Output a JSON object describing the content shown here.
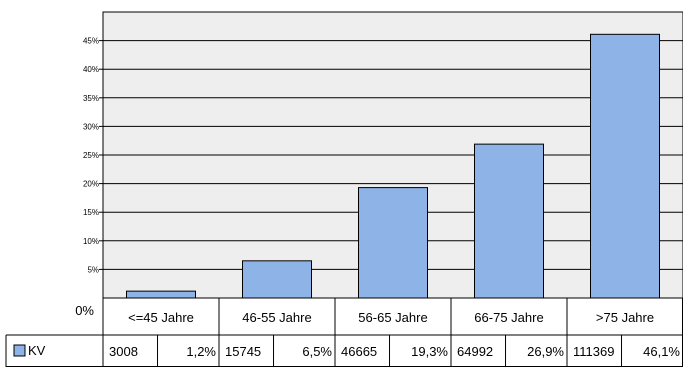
{
  "chart_data": {
    "type": "bar",
    "categories": [
      "<=45 Jahre",
      "46-55 Jahre",
      "56-65 Jahre",
      "66-75 Jahre",
      ">75 Jahre"
    ],
    "series": [
      {
        "name": "KV",
        "values": [
          1.2,
          6.5,
          19.3,
          26.9,
          46.1
        ],
        "counts": [
          "3008",
          "15745",
          "46665",
          "64992",
          "111369"
        ],
        "percent_labels": [
          "1,2%",
          "6,5%",
          "19,3%",
          "26,9%",
          "46,1%"
        ],
        "color": "#8EB3E6"
      }
    ],
    "y_ticks": [
      "0%",
      "5%",
      "10%",
      "15%",
      "20%",
      "25%",
      "30%",
      "35%",
      "40%",
      "45%"
    ],
    "ylim": [
      0,
      50
    ],
    "grid": true,
    "legend": "bottom-left data table",
    "plot_background": "#EEEEEE"
  }
}
